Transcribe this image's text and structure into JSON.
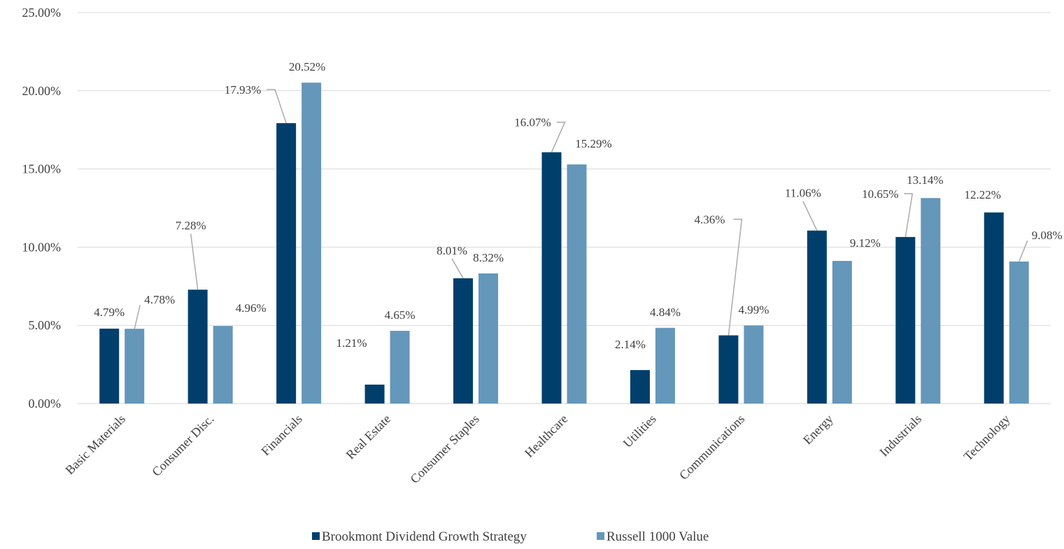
{
  "chart_data": {
    "type": "bar",
    "categories": [
      "Basic Materials",
      "Consumer Disc.",
      "Financials",
      "Real Estate",
      "Consumer Staples",
      "Healthcare",
      "Utilities",
      "Communications",
      "Energy",
      "Industrials",
      "Technology"
    ],
    "series": [
      {
        "name": "Brookmont Dividend Growth Strategy",
        "color": "#003f6b",
        "values": [
          4.79,
          7.28,
          17.93,
          1.21,
          8.01,
          16.07,
          2.14,
          4.36,
          11.06,
          10.65,
          12.22
        ],
        "labels": [
          "4.79%",
          "7.28%",
          "17.93%",
          "1.21%",
          "8.01%",
          "16.07%",
          "2.14%",
          "4.36%",
          "11.06%",
          "10.65%",
          "12.22%"
        ]
      },
      {
        "name": "Russell 1000 Value",
        "color": "#6497b9",
        "values": [
          4.78,
          4.96,
          20.52,
          4.65,
          8.32,
          15.29,
          4.84,
          4.99,
          9.12,
          13.14,
          9.08
        ],
        "labels": [
          "4.78%",
          "4.96%",
          "20.52%",
          "4.65%",
          "8.32%",
          "15.29%",
          "4.84%",
          "4.99%",
          "9.12%",
          "13.14%",
          "9.08%"
        ]
      }
    ],
    "ylim": [
      0,
      25
    ],
    "yticks": [
      0,
      5,
      10,
      15,
      20,
      25
    ],
    "ytick_labels": [
      "0.00%",
      "5.00%",
      "10.00%",
      "15.00%",
      "20.00%",
      "25.00%"
    ],
    "grid": true,
    "legend": "bottom-center"
  }
}
